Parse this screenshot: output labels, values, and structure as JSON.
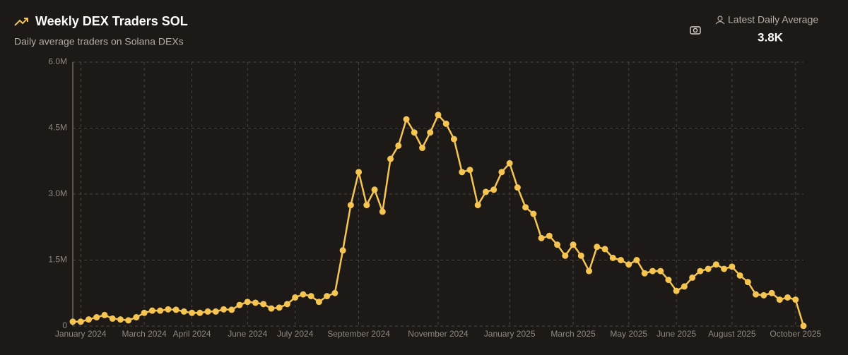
{
  "header": {
    "title": "Weekly DEX Traders SOL",
    "subtitle": "Daily average traders on Solana DEXs",
    "stat_label": "Latest Daily Average",
    "stat_value": "3.8K"
  },
  "chart_data": {
    "type": "line",
    "categories": [
      null,
      "January 2024",
      null,
      null,
      null,
      null,
      null,
      null,
      null,
      "March 2024",
      null,
      null,
      null,
      null,
      null,
      "April 2024",
      null,
      null,
      null,
      null,
      null,
      null,
      "June 2024",
      null,
      null,
      null,
      null,
      null,
      "July 2024",
      null,
      null,
      null,
      null,
      null,
      null,
      null,
      "September 2024",
      null,
      null,
      null,
      null,
      null,
      null,
      null,
      null,
      null,
      "November 2024",
      null,
      null,
      null,
      null,
      null,
      null,
      null,
      null,
      "January 2025",
      null,
      null,
      null,
      null,
      null,
      null,
      null,
      "March 2025",
      null,
      null,
      null,
      null,
      null,
      null,
      "May 2025",
      null,
      null,
      null,
      null,
      null,
      "June 2025",
      null,
      null,
      null,
      null,
      null,
      null,
      "August 2025",
      null,
      null,
      null,
      null,
      null,
      null,
      null,
      "October 2025",
      null
    ],
    "series": [
      {
        "name": "Weekly DEX Traders SOL",
        "color": "#f5c451",
        "values": [
          100000,
          100000,
          150000,
          200000,
          250000,
          170000,
          150000,
          130000,
          200000,
          300000,
          350000,
          350000,
          380000,
          370000,
          330000,
          300000,
          300000,
          330000,
          330000,
          380000,
          370000,
          480000,
          550000,
          530000,
          500000,
          400000,
          420000,
          500000,
          650000,
          720000,
          680000,
          550000,
          680000,
          750000,
          1720000,
          2750000,
          3500000,
          2750000,
          3100000,
          2600000,
          3800000,
          4100000,
          4700000,
          4400000,
          4050000,
          4400000,
          4800000,
          4600000,
          4250000,
          3500000,
          3550000,
          2750000,
          3050000,
          3100000,
          3500000,
          3700000,
          3150000,
          2700000,
          2550000,
          2000000,
          2050000,
          1850000,
          1600000,
          1850000,
          1600000,
          1250000,
          1800000,
          1750000,
          1550000,
          1500000,
          1400000,
          1500000,
          1200000,
          1250000,
          1250000,
          1050000,
          800000,
          900000,
          1100000,
          1250000,
          1300000,
          1400000,
          1300000,
          1350000,
          1150000,
          1000000,
          720000,
          700000,
          750000,
          600000,
          650000,
          600000,
          3800
        ]
      }
    ],
    "ylim": [
      0,
      6000000
    ],
    "yticks": [
      0,
      {
        "value": 1500000,
        "label": "1.5M"
      },
      {
        "value": 3000000,
        "label": "3.0M"
      },
      {
        "value": 4500000,
        "label": "4.5M"
      },
      {
        "value": 6000000,
        "label": "6.0M"
      }
    ],
    "grid": true
  }
}
